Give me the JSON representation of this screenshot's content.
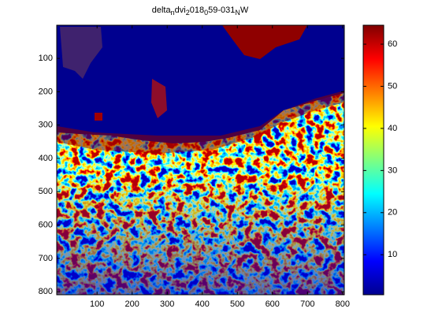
{
  "chart_data": {
    "type": "image",
    "title_parts": [
      "delta",
      "n",
      "dvi",
      "2",
      "018",
      "0",
      "59-031",
      "N",
      "W"
    ],
    "xlim": [
      -15,
      805
    ],
    "xticks": [
      100,
      200,
      300,
      400,
      500,
      600,
      700,
      800
    ],
    "ylim": [
      0.5,
      809
    ],
    "y_reversed": true,
    "yticks": [
      100,
      200,
      300,
      400,
      500,
      600,
      700,
      800
    ],
    "colorbar": {
      "clim": [
        0.5,
        64.5
      ],
      "ticks": [
        10,
        20,
        30,
        40,
        50,
        60
      ]
    }
  }
}
